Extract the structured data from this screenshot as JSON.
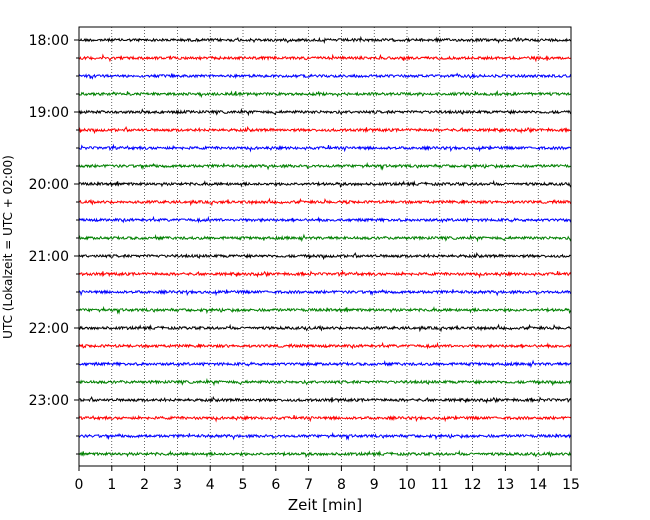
{
  "chart_data": {
    "type": "line",
    "title": "",
    "xlabel": "Zeit  [min]",
    "ylabel": "UTC (Lokalzeit = UTC + 02:00)",
    "xlim": [
      0,
      15
    ],
    "x_ticks": [
      0,
      1,
      2,
      3,
      4,
      5,
      6,
      7,
      8,
      9,
      10,
      11,
      12,
      13,
      14,
      15
    ],
    "x_grid": true,
    "y_tick_labels": [
      "18:00",
      "19:00",
      "20:00",
      "21:00",
      "22:00",
      "23:00"
    ],
    "trace_start_times": [
      "18:00",
      "18:15",
      "18:30",
      "18:45",
      "19:00",
      "19:15",
      "19:30",
      "19:45",
      "20:00",
      "20:15",
      "20:30",
      "20:45",
      "21:00",
      "21:15",
      "21:30",
      "21:45",
      "22:00",
      "22:15",
      "22:30",
      "22:45",
      "23:00",
      "23:15",
      "23:30",
      "23:45"
    ],
    "trace_minutes_each": 15,
    "trace_color_cycle": [
      "#000000",
      "#ff0000",
      "#0000ff",
      "#008000"
    ]
  }
}
